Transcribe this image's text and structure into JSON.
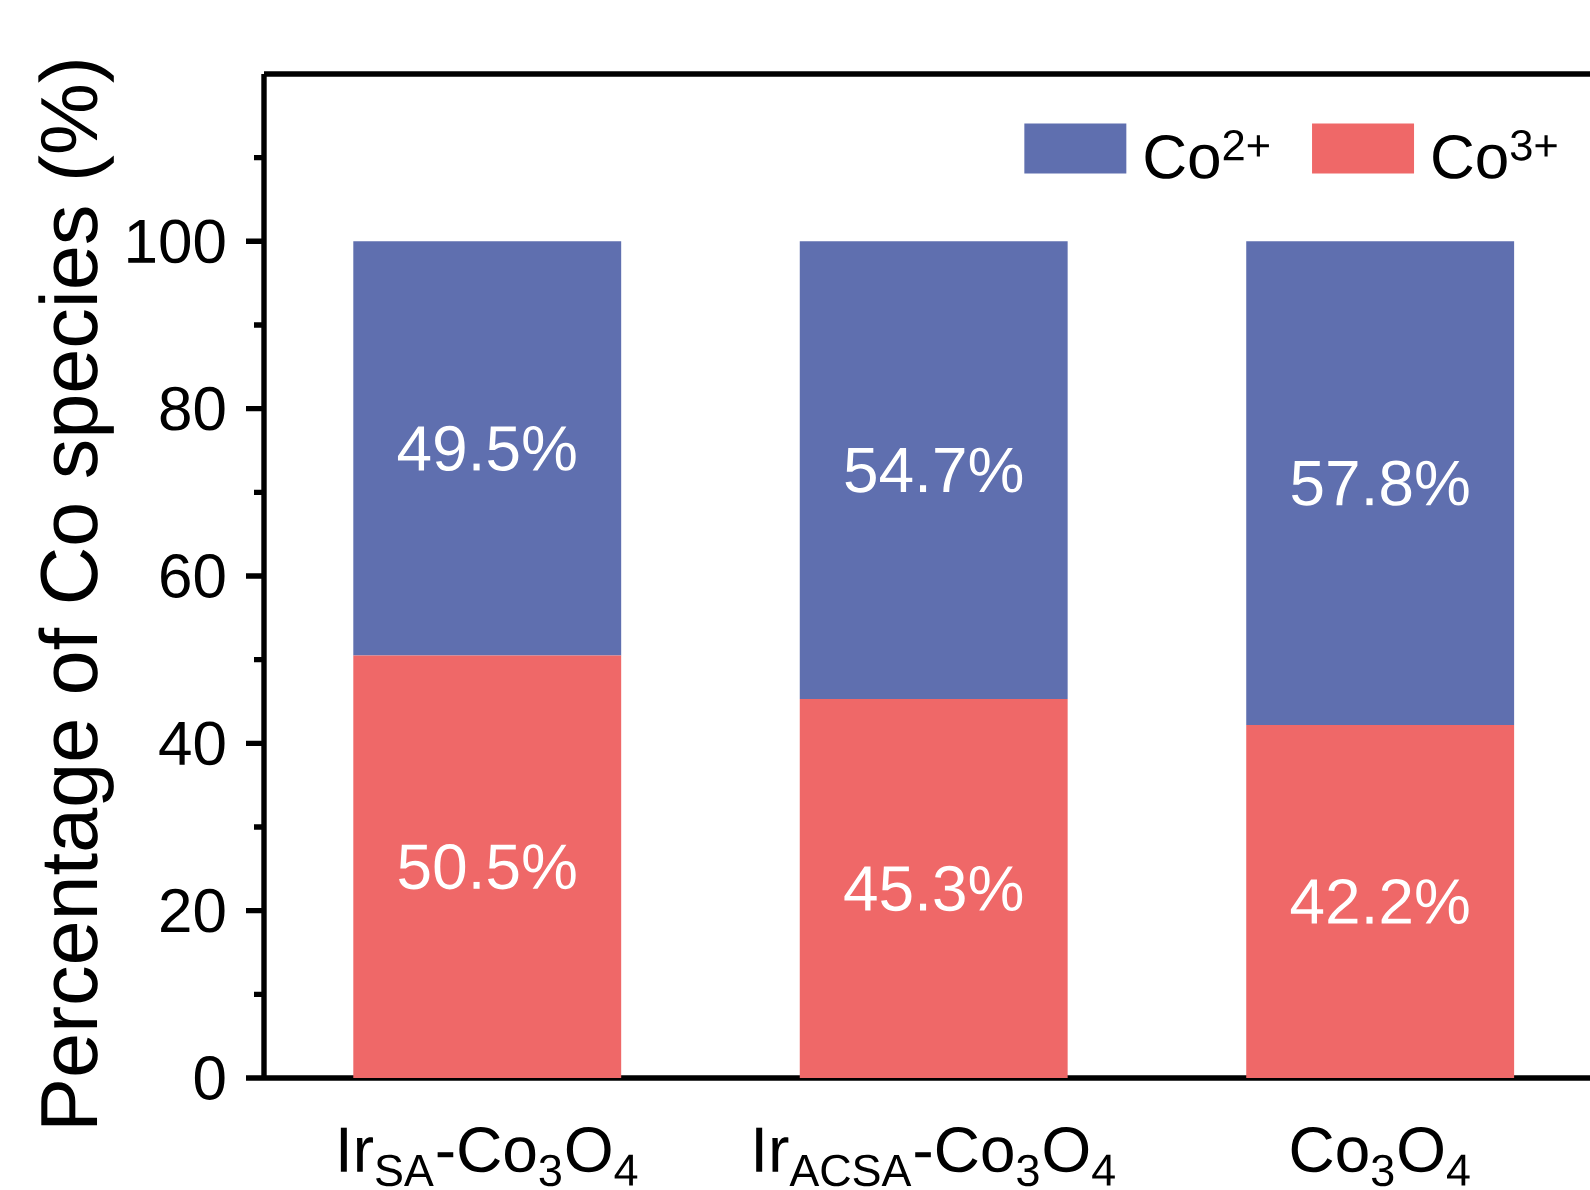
{
  "chart_data": {
    "type": "bar",
    "ylabel": "Percentage of Co species (%)",
    "categories": [
      "Ir$_{SA}$-Co$_{3}$O$_{4}$",
      "Ir$_{ACSA}$-Co$_{3}$O$_{4}$",
      "Co$_{3}$O$_{4}$"
    ],
    "stacked": true,
    "series": [
      {
        "name": "Co$^{3+}$",
        "color": "#ef6868",
        "values": [
          50.5,
          45.3,
          42.2
        ],
        "value_labels": [
          "50.5%",
          "45.3%",
          "42.2%"
        ]
      },
      {
        "name": "Co$^{2+}$",
        "color": "#5f6faf",
        "values": [
          49.5,
          54.7,
          57.8
        ],
        "value_labels": [
          "49.5%",
          "54.7%",
          "57.8%"
        ]
      }
    ],
    "ylim": [
      0,
      120
    ],
    "yticks": [
      0,
      {
        "value": 10,
        "label": null
      },
      20,
      {
        "value": 30,
        "label": null
      },
      40,
      {
        "value": 50,
        "label": null
      },
      60,
      {
        "value": 70,
        "label": null
      },
      80,
      {
        "value": 90,
        "label": null
      },
      100,
      {
        "value": 110,
        "label": null
      }
    ],
    "legend": "top right"
  }
}
